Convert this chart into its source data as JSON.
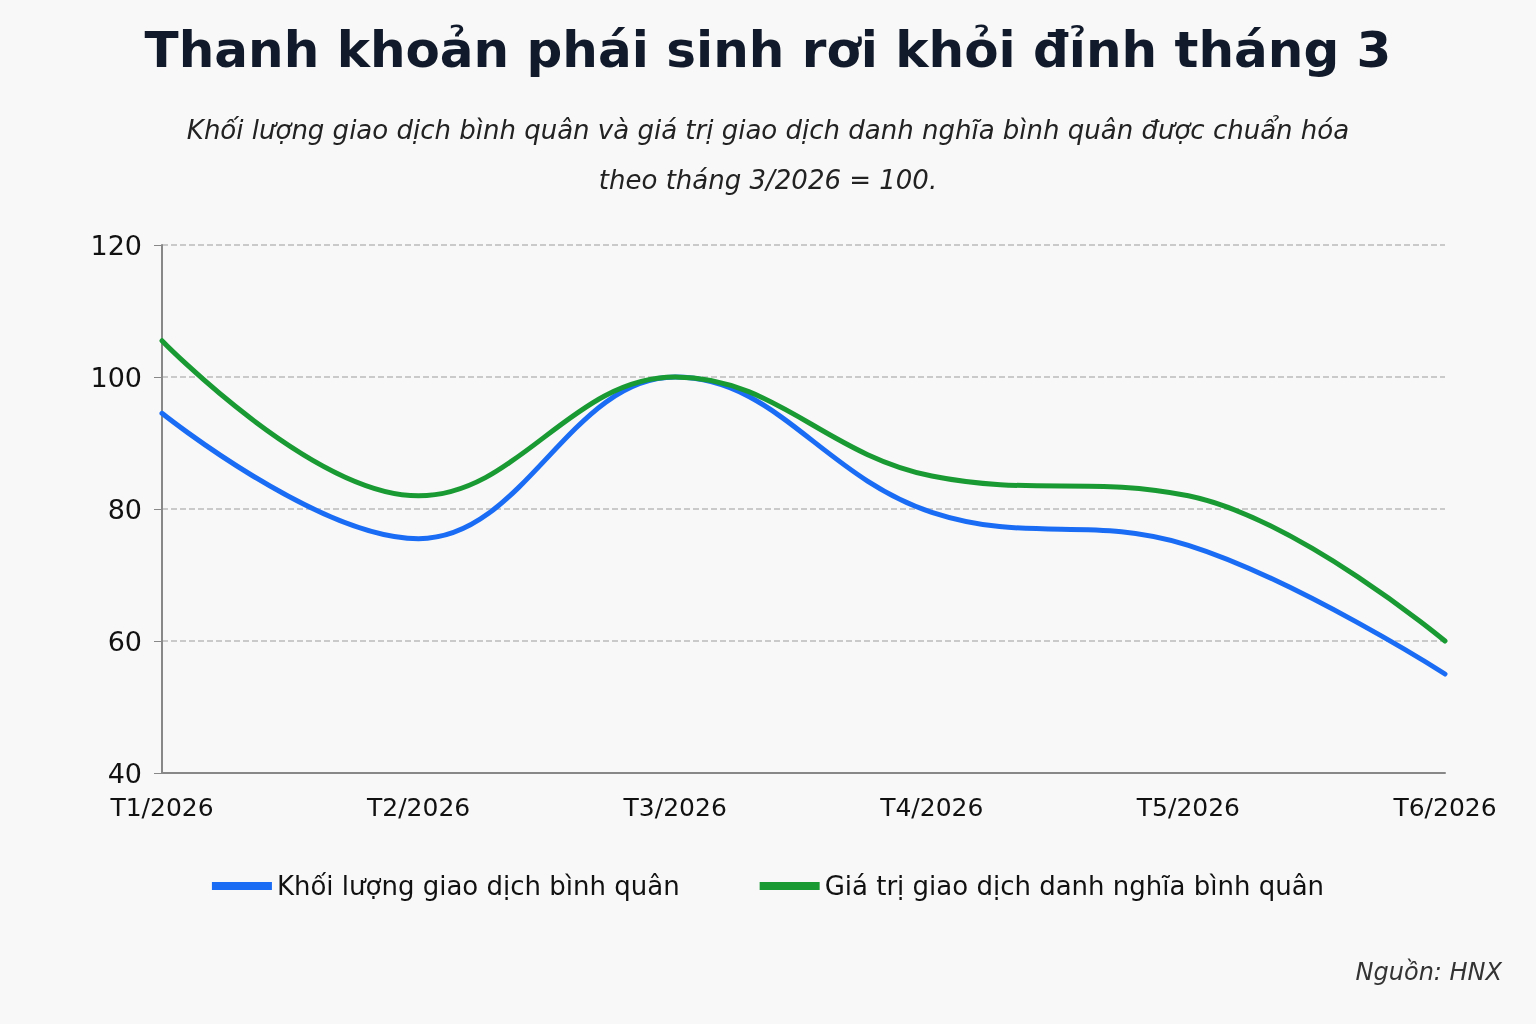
{
  "chart_data": {
    "type": "line",
    "title": "Thanh khoản phái sinh rơi khỏi đỉnh tháng 3",
    "subtitle": "Khối lượng giao dịch bình quân và giá trị giao dịch danh nghĩa bình quân được chuẩn hóa\ntheo tháng 3/2026 = 100.",
    "categories": [
      "T1/2026",
      "T2/2026",
      "T3/2026",
      "T4/2026",
      "T5/2026",
      "T6/2026"
    ],
    "series": [
      {
        "name": "Khối lượng giao dịch bình quân",
        "color": "#1a6cf5",
        "values": [
          94.5,
          75.5,
          100,
          79.5,
          74.5,
          55
        ]
      },
      {
        "name": "Giá trị giao dịch danh nghĩa bình quân",
        "color": "#1a9a33",
        "values": [
          105.5,
          82,
          100,
          85,
          82,
          60
        ]
      }
    ],
    "ylim": [
      40,
      120
    ],
    "yticks": [
      40,
      60,
      80,
      100,
      120
    ],
    "grid": "y",
    "legend": "bottom",
    "marker": "none",
    "line_style": "solid",
    "annotations": [
      "Nguồn: HNX"
    ]
  }
}
